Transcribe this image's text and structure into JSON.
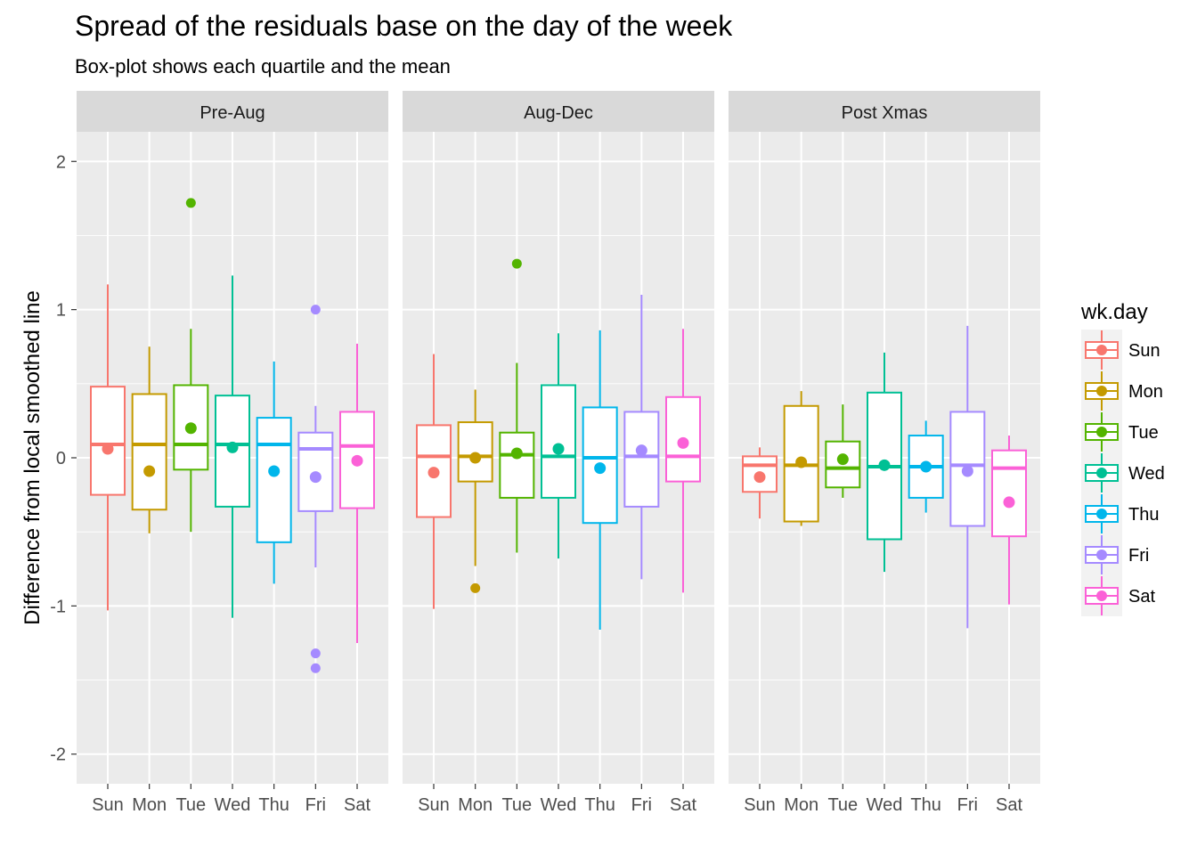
{
  "chart_data": {
    "type": "boxplot",
    "title": "Spread of the residuals base on the day of the week",
    "subtitle": "Box-plot shows each quartile and the mean",
    "ylabel": "Difference from local smoothed line",
    "xlabel": "",
    "ylim": [
      -2.2,
      2.2
    ],
    "yticks": [
      2,
      1,
      0,
      -1,
      -2
    ],
    "ytick_labels": [
      "2",
      "1",
      "0",
      "-1",
      "-2"
    ],
    "categories": [
      "Sun",
      "Mon",
      "Tue",
      "Wed",
      "Thu",
      "Fri",
      "Sat"
    ],
    "legend": {
      "title": "wk.day",
      "position": "right",
      "entries": [
        {
          "label": "Sun",
          "color": "#F8766D"
        },
        {
          "label": "Mon",
          "color": "#C49A00"
        },
        {
          "label": "Tue",
          "color": "#53B400"
        },
        {
          "label": "Wed",
          "color": "#00C094"
        },
        {
          "label": "Thu",
          "color": "#00B6EB"
        },
        {
          "label": "Fri",
          "color": "#A58AFF"
        },
        {
          "label": "Sat",
          "color": "#FB61D7"
        }
      ]
    },
    "grid": true,
    "panels": [
      {
        "label": "Pre-Aug",
        "boxes": [
          {
            "day": "Sun",
            "lower": -1.03,
            "q1": -0.25,
            "median": 0.09,
            "q3": 0.48,
            "upper": 1.17,
            "mean": 0.06,
            "outliers": []
          },
          {
            "day": "Mon",
            "lower": -0.51,
            "q1": -0.35,
            "median": 0.09,
            "q3": 0.43,
            "upper": 0.75,
            "mean": -0.09,
            "outliers": []
          },
          {
            "day": "Tue",
            "lower": -0.5,
            "q1": -0.08,
            "median": 0.09,
            "q3": 0.49,
            "upper": 0.87,
            "mean": 0.2,
            "outliers": [
              1.72
            ]
          },
          {
            "day": "Wed",
            "lower": -1.08,
            "q1": -0.33,
            "median": 0.09,
            "q3": 0.42,
            "upper": 1.23,
            "mean": 0.07,
            "outliers": []
          },
          {
            "day": "Thu",
            "lower": -0.85,
            "q1": -0.57,
            "median": 0.09,
            "q3": 0.27,
            "upper": 0.65,
            "mean": -0.09,
            "outliers": []
          },
          {
            "day": "Fri",
            "lower": -0.74,
            "q1": -0.36,
            "median": 0.06,
            "q3": 0.17,
            "upper": 0.35,
            "mean": -0.13,
            "outliers": [
              1.0,
              -1.32,
              -1.42
            ]
          },
          {
            "day": "Sat",
            "lower": -1.25,
            "q1": -0.34,
            "median": 0.08,
            "q3": 0.31,
            "upper": 0.77,
            "mean": -0.02,
            "outliers": []
          }
        ]
      },
      {
        "label": "Aug-Dec",
        "boxes": [
          {
            "day": "Sun",
            "lower": -1.02,
            "q1": -0.4,
            "median": 0.01,
            "q3": 0.22,
            "upper": 0.7,
            "mean": -0.1,
            "outliers": []
          },
          {
            "day": "Mon",
            "lower": -0.73,
            "q1": -0.16,
            "median": 0.01,
            "q3": 0.24,
            "upper": 0.46,
            "mean": 0.0,
            "outliers": [
              -0.88
            ]
          },
          {
            "day": "Tue",
            "lower": -0.64,
            "q1": -0.27,
            "median": 0.02,
            "q3": 0.17,
            "upper": 0.64,
            "mean": 0.03,
            "outliers": [
              1.31
            ]
          },
          {
            "day": "Wed",
            "lower": -0.68,
            "q1": -0.27,
            "median": 0.01,
            "q3": 0.49,
            "upper": 0.84,
            "mean": 0.06,
            "outliers": []
          },
          {
            "day": "Thu",
            "lower": -1.16,
            "q1": -0.44,
            "median": 0.0,
            "q3": 0.34,
            "upper": 0.86,
            "mean": -0.07,
            "outliers": []
          },
          {
            "day": "Fri",
            "lower": -0.82,
            "q1": -0.33,
            "median": 0.01,
            "q3": 0.31,
            "upper": 1.1,
            "mean": 0.05,
            "outliers": []
          },
          {
            "day": "Sat",
            "lower": -0.91,
            "q1": -0.16,
            "median": 0.01,
            "q3": 0.41,
            "upper": 0.87,
            "mean": 0.1,
            "outliers": []
          }
        ]
      },
      {
        "label": "Post Xmas",
        "boxes": [
          {
            "day": "Sun",
            "lower": -0.41,
            "q1": -0.23,
            "median": -0.05,
            "q3": 0.01,
            "upper": 0.07,
            "mean": -0.13,
            "outliers": []
          },
          {
            "day": "Mon",
            "lower": -0.46,
            "q1": -0.43,
            "median": -0.05,
            "q3": 0.35,
            "upper": 0.45,
            "mean": -0.03,
            "outliers": []
          },
          {
            "day": "Tue",
            "lower": -0.27,
            "q1": -0.2,
            "median": -0.07,
            "q3": 0.11,
            "upper": 0.36,
            "mean": -0.01,
            "outliers": []
          },
          {
            "day": "Wed",
            "lower": -0.77,
            "q1": -0.55,
            "median": -0.06,
            "q3": 0.44,
            "upper": 0.71,
            "mean": -0.05,
            "outliers": []
          },
          {
            "day": "Thu",
            "lower": -0.37,
            "q1": -0.27,
            "median": -0.06,
            "q3": 0.15,
            "upper": 0.25,
            "mean": -0.06,
            "outliers": []
          },
          {
            "day": "Fri",
            "lower": -1.15,
            "q1": -0.46,
            "median": -0.05,
            "q3": 0.31,
            "upper": 0.89,
            "mean": -0.09,
            "outliers": []
          },
          {
            "day": "Sat",
            "lower": -0.99,
            "q1": -0.53,
            "median": -0.07,
            "q3": 0.05,
            "upper": 0.15,
            "mean": -0.3,
            "outliers": []
          }
        ]
      }
    ]
  }
}
